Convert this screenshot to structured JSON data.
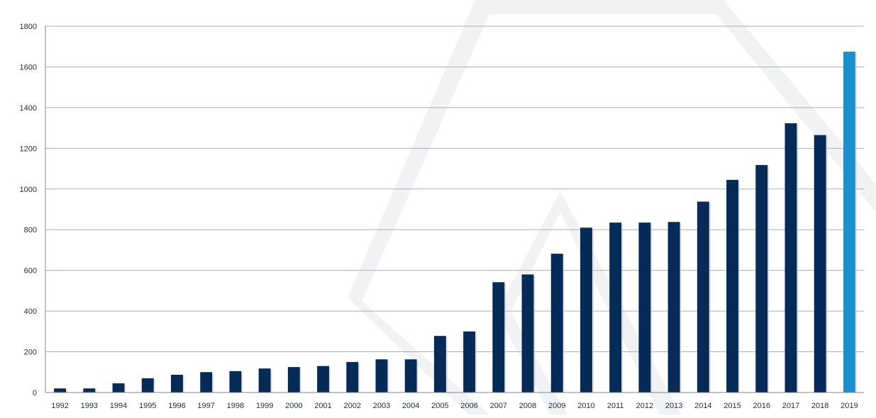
{
  "chart_data": {
    "type": "bar",
    "title": "",
    "xlabel": "",
    "ylabel": "",
    "ylim": [
      0,
      1800
    ],
    "yticks": [
      0,
      200,
      400,
      600,
      800,
      1000,
      1200,
      1400,
      1600,
      1800
    ],
    "grid": true,
    "legend": "none",
    "categories": [
      "1992",
      "1993",
      "1994",
      "1995",
      "1996",
      "1997",
      "1998",
      "1999",
      "2000",
      "2001",
      "2002",
      "2003",
      "2004",
      "2005",
      "2006",
      "2007",
      "2008",
      "2009",
      "2010",
      "2011",
      "2012",
      "2013",
      "2014",
      "2015",
      "2016",
      "2017",
      "2018",
      "2019"
    ],
    "values": [
      20,
      20,
      45,
      70,
      87,
      100,
      105,
      118,
      125,
      130,
      150,
      163,
      163,
      278,
      300,
      542,
      580,
      682,
      810,
      835,
      835,
      838,
      938,
      1045,
      1118,
      1323,
      1265,
      1675
    ],
    "colors": {
      "bar": "#062b57",
      "highlight": "#1a8fd0",
      "grid": "#a9adb6",
      "axis": "#7f8591",
      "watermark": "#f1f2f4"
    },
    "highlight_category": "2019"
  }
}
